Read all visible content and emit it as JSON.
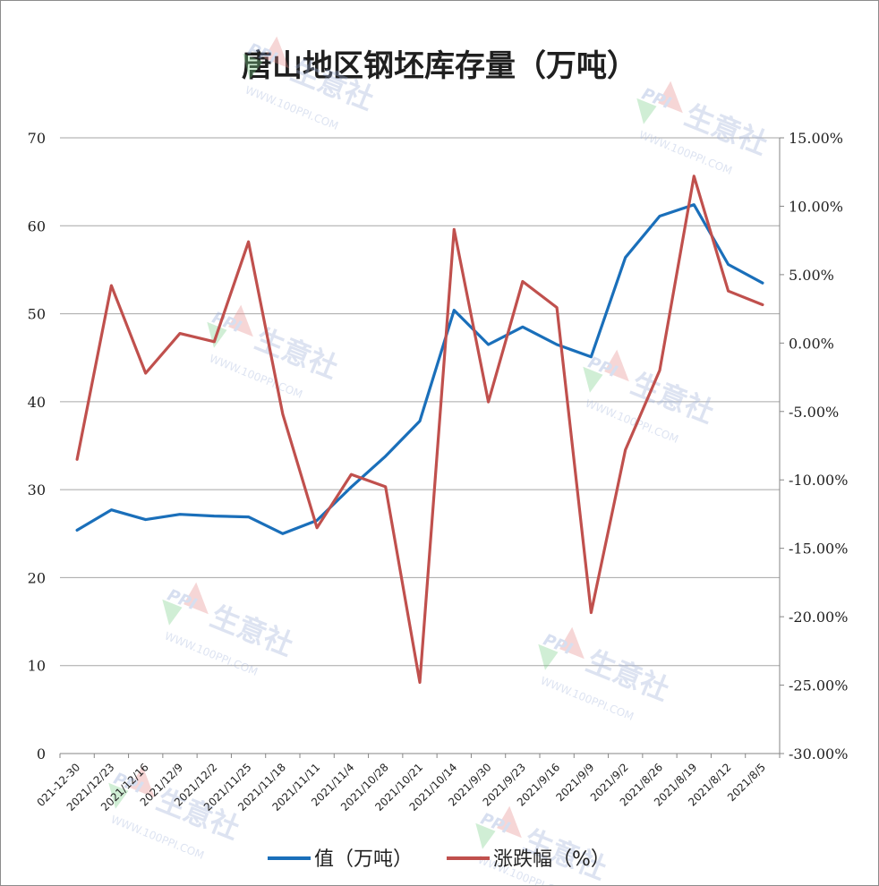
{
  "chart_data": {
    "type": "line",
    "title": "唐山地区钢坯库存量（万吨）",
    "categories": [
      "021-12-30",
      "2021/12/23",
      "2021/12/16",
      "2021/12/9",
      "2021/12/2",
      "2021/11/25",
      "2021/11/18",
      "2021/11/11",
      "2021/11/4",
      "2021/10/28",
      "2021/10/21",
      "2021/10/14",
      "2021/9/30",
      "2021/9/23",
      "2021/9/16",
      "2021/9/9",
      "2021/9/2",
      "2021/8/26",
      "2021/8/19",
      "2021/8/12",
      "2021/8/5"
    ],
    "series": [
      {
        "name": "值（万吨）",
        "axis": "left",
        "color": "#1a6fba",
        "values": [
          25.4,
          27.7,
          26.6,
          27.2,
          27.0,
          26.9,
          25.0,
          26.5,
          30.3,
          33.8,
          37.8,
          50.4,
          46.5,
          48.5,
          46.5,
          45.1,
          56.4,
          61.1,
          62.4,
          55.6,
          53.5
        ]
      },
      {
        "name": "涨跌幅（%）",
        "axis": "right",
        "color": "#c0504d",
        "values": [
          -8.5,
          4.2,
          -2.2,
          0.7,
          0.1,
          7.4,
          -5.2,
          -13.5,
          -9.6,
          -10.5,
          -24.8,
          8.3,
          -4.3,
          4.5,
          2.6,
          -19.7,
          -7.8,
          -2.0,
          12.2,
          3.8,
          2.8
        ]
      }
    ],
    "y_left": {
      "min": 0,
      "max": 70,
      "step": 10,
      "ticks": [
        "0",
        "10",
        "20",
        "30",
        "40",
        "50",
        "60",
        "70"
      ]
    },
    "y_right": {
      "min": -30,
      "max": 15,
      "step": 5,
      "ticks": [
        "-30.00%",
        "-25.00%",
        "-20.00%",
        "-15.00%",
        "-10.00%",
        "-5.00%",
        "0.00%",
        "5.00%",
        "10.00%",
        "15.00%"
      ]
    },
    "grid": true,
    "legend_position": "bottom"
  },
  "watermark": {
    "logo_text": "PPI",
    "brand_text": "生意社",
    "url_text": "WWW.100PPI.COM"
  }
}
